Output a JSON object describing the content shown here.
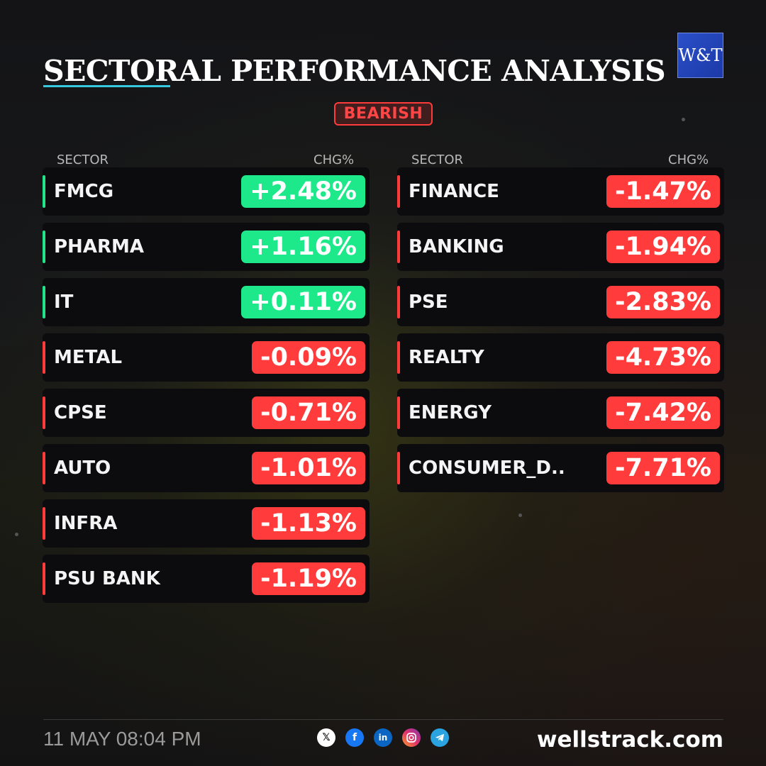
{
  "header": {
    "title": "SECTORAL PERFORMANCE ANALYSIS",
    "logo_text": "W&T",
    "sentiment_badge": "BEARISH"
  },
  "table_left": {
    "sector_header": "SECTOR",
    "change_header": "CHG%",
    "rows": [
      {
        "sector": "FMCG",
        "change": "+2.48%",
        "direction": "up"
      },
      {
        "sector": "PHARMA",
        "change": "+1.16%",
        "direction": "up"
      },
      {
        "sector": "IT",
        "change": "+0.11%",
        "direction": "up"
      },
      {
        "sector": "METAL",
        "change": "-0.09%",
        "direction": "down"
      },
      {
        "sector": "CPSE",
        "change": "-0.71%",
        "direction": "down"
      },
      {
        "sector": "AUTO",
        "change": "-1.01%",
        "direction": "down"
      },
      {
        "sector": "INFRA",
        "change": "-1.13%",
        "direction": "down"
      },
      {
        "sector": "PSU BANK",
        "change": "-1.19%",
        "direction": "down"
      }
    ]
  },
  "table_right": {
    "sector_header": "SECTOR",
    "change_header": "CHG%",
    "rows": [
      {
        "sector": "FINANCE",
        "change": "-1.47%",
        "direction": "down"
      },
      {
        "sector": "BANKING",
        "change": "-1.94%",
        "direction": "down"
      },
      {
        "sector": "PSE",
        "change": "-2.83%",
        "direction": "down"
      },
      {
        "sector": "REALTY",
        "change": "-4.73%",
        "direction": "down"
      },
      {
        "sector": "ENERGY",
        "change": "-7.42%",
        "direction": "down"
      },
      {
        "sector": "CONSUMER_D..",
        "change": "-7.71%",
        "direction": "down"
      }
    ]
  },
  "footer": {
    "datetime": "11 MAY 08:04 PM",
    "website": "wellstrack.com",
    "social_icons": [
      "x-icon",
      "facebook-icon",
      "linkedin-icon",
      "instagram-icon",
      "telegram-icon"
    ]
  },
  "colors": {
    "positive": "#1ee98a",
    "negative": "#ff3b3b",
    "accent_underline": "#35c9e0",
    "logo_blue": "#2a4fc8"
  }
}
